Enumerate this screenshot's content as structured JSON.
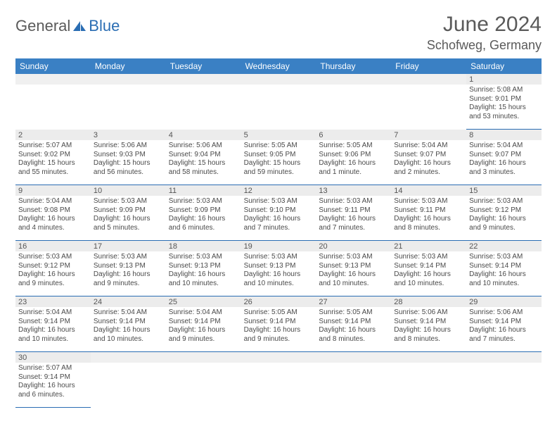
{
  "header": {
    "logo_part1": "General",
    "logo_part2": "Blue",
    "month_title": "June 2024",
    "location": "Schofweg, Germany"
  },
  "colors": {
    "header_bg": "#3a80c4",
    "border": "#2a6db3",
    "daynum_bg": "#ececec",
    "text": "#4a4a4a"
  },
  "day_names": [
    "Sunday",
    "Monday",
    "Tuesday",
    "Wednesday",
    "Thursday",
    "Friday",
    "Saturday"
  ],
  "weeks": [
    {
      "days": [
        null,
        null,
        null,
        null,
        null,
        null,
        {
          "n": "1",
          "sr": "Sunrise: 5:08 AM",
          "ss": "Sunset: 9:01 PM",
          "d1": "Daylight: 15 hours",
          "d2": "and 53 minutes."
        }
      ]
    },
    {
      "days": [
        {
          "n": "2",
          "sr": "Sunrise: 5:07 AM",
          "ss": "Sunset: 9:02 PM",
          "d1": "Daylight: 15 hours",
          "d2": "and 55 minutes."
        },
        {
          "n": "3",
          "sr": "Sunrise: 5:06 AM",
          "ss": "Sunset: 9:03 PM",
          "d1": "Daylight: 15 hours",
          "d2": "and 56 minutes."
        },
        {
          "n": "4",
          "sr": "Sunrise: 5:06 AM",
          "ss": "Sunset: 9:04 PM",
          "d1": "Daylight: 15 hours",
          "d2": "and 58 minutes."
        },
        {
          "n": "5",
          "sr": "Sunrise: 5:05 AM",
          "ss": "Sunset: 9:05 PM",
          "d1": "Daylight: 15 hours",
          "d2": "and 59 minutes."
        },
        {
          "n": "6",
          "sr": "Sunrise: 5:05 AM",
          "ss": "Sunset: 9:06 PM",
          "d1": "Daylight: 16 hours",
          "d2": "and 1 minute."
        },
        {
          "n": "7",
          "sr": "Sunrise: 5:04 AM",
          "ss": "Sunset: 9:07 PM",
          "d1": "Daylight: 16 hours",
          "d2": "and 2 minutes."
        },
        {
          "n": "8",
          "sr": "Sunrise: 5:04 AM",
          "ss": "Sunset: 9:07 PM",
          "d1": "Daylight: 16 hours",
          "d2": "and 3 minutes."
        }
      ]
    },
    {
      "days": [
        {
          "n": "9",
          "sr": "Sunrise: 5:04 AM",
          "ss": "Sunset: 9:08 PM",
          "d1": "Daylight: 16 hours",
          "d2": "and 4 minutes."
        },
        {
          "n": "10",
          "sr": "Sunrise: 5:03 AM",
          "ss": "Sunset: 9:09 PM",
          "d1": "Daylight: 16 hours",
          "d2": "and 5 minutes."
        },
        {
          "n": "11",
          "sr": "Sunrise: 5:03 AM",
          "ss": "Sunset: 9:09 PM",
          "d1": "Daylight: 16 hours",
          "d2": "and 6 minutes."
        },
        {
          "n": "12",
          "sr": "Sunrise: 5:03 AM",
          "ss": "Sunset: 9:10 PM",
          "d1": "Daylight: 16 hours",
          "d2": "and 7 minutes."
        },
        {
          "n": "13",
          "sr": "Sunrise: 5:03 AM",
          "ss": "Sunset: 9:11 PM",
          "d1": "Daylight: 16 hours",
          "d2": "and 7 minutes."
        },
        {
          "n": "14",
          "sr": "Sunrise: 5:03 AM",
          "ss": "Sunset: 9:11 PM",
          "d1": "Daylight: 16 hours",
          "d2": "and 8 minutes."
        },
        {
          "n": "15",
          "sr": "Sunrise: 5:03 AM",
          "ss": "Sunset: 9:12 PM",
          "d1": "Daylight: 16 hours",
          "d2": "and 9 minutes."
        }
      ]
    },
    {
      "days": [
        {
          "n": "16",
          "sr": "Sunrise: 5:03 AM",
          "ss": "Sunset: 9:12 PM",
          "d1": "Daylight: 16 hours",
          "d2": "and 9 minutes."
        },
        {
          "n": "17",
          "sr": "Sunrise: 5:03 AM",
          "ss": "Sunset: 9:13 PM",
          "d1": "Daylight: 16 hours",
          "d2": "and 9 minutes."
        },
        {
          "n": "18",
          "sr": "Sunrise: 5:03 AM",
          "ss": "Sunset: 9:13 PM",
          "d1": "Daylight: 16 hours",
          "d2": "and 10 minutes."
        },
        {
          "n": "19",
          "sr": "Sunrise: 5:03 AM",
          "ss": "Sunset: 9:13 PM",
          "d1": "Daylight: 16 hours",
          "d2": "and 10 minutes."
        },
        {
          "n": "20",
          "sr": "Sunrise: 5:03 AM",
          "ss": "Sunset: 9:13 PM",
          "d1": "Daylight: 16 hours",
          "d2": "and 10 minutes."
        },
        {
          "n": "21",
          "sr": "Sunrise: 5:03 AM",
          "ss": "Sunset: 9:14 PM",
          "d1": "Daylight: 16 hours",
          "d2": "and 10 minutes."
        },
        {
          "n": "22",
          "sr": "Sunrise: 5:03 AM",
          "ss": "Sunset: 9:14 PM",
          "d1": "Daylight: 16 hours",
          "d2": "and 10 minutes."
        }
      ]
    },
    {
      "days": [
        {
          "n": "23",
          "sr": "Sunrise: 5:04 AM",
          "ss": "Sunset: 9:14 PM",
          "d1": "Daylight: 16 hours",
          "d2": "and 10 minutes."
        },
        {
          "n": "24",
          "sr": "Sunrise: 5:04 AM",
          "ss": "Sunset: 9:14 PM",
          "d1": "Daylight: 16 hours",
          "d2": "and 10 minutes."
        },
        {
          "n": "25",
          "sr": "Sunrise: 5:04 AM",
          "ss": "Sunset: 9:14 PM",
          "d1": "Daylight: 16 hours",
          "d2": "and 9 minutes."
        },
        {
          "n": "26",
          "sr": "Sunrise: 5:05 AM",
          "ss": "Sunset: 9:14 PM",
          "d1": "Daylight: 16 hours",
          "d2": "and 9 minutes."
        },
        {
          "n": "27",
          "sr": "Sunrise: 5:05 AM",
          "ss": "Sunset: 9:14 PM",
          "d1": "Daylight: 16 hours",
          "d2": "and 8 minutes."
        },
        {
          "n": "28",
          "sr": "Sunrise: 5:06 AM",
          "ss": "Sunset: 9:14 PM",
          "d1": "Daylight: 16 hours",
          "d2": "and 8 minutes."
        },
        {
          "n": "29",
          "sr": "Sunrise: 5:06 AM",
          "ss": "Sunset: 9:14 PM",
          "d1": "Daylight: 16 hours",
          "d2": "and 7 minutes."
        }
      ]
    },
    {
      "days": [
        {
          "n": "30",
          "sr": "Sunrise: 5:07 AM",
          "ss": "Sunset: 9:14 PM",
          "d1": "Daylight: 16 hours",
          "d2": "and 6 minutes."
        },
        null,
        null,
        null,
        null,
        null,
        null
      ]
    }
  ]
}
